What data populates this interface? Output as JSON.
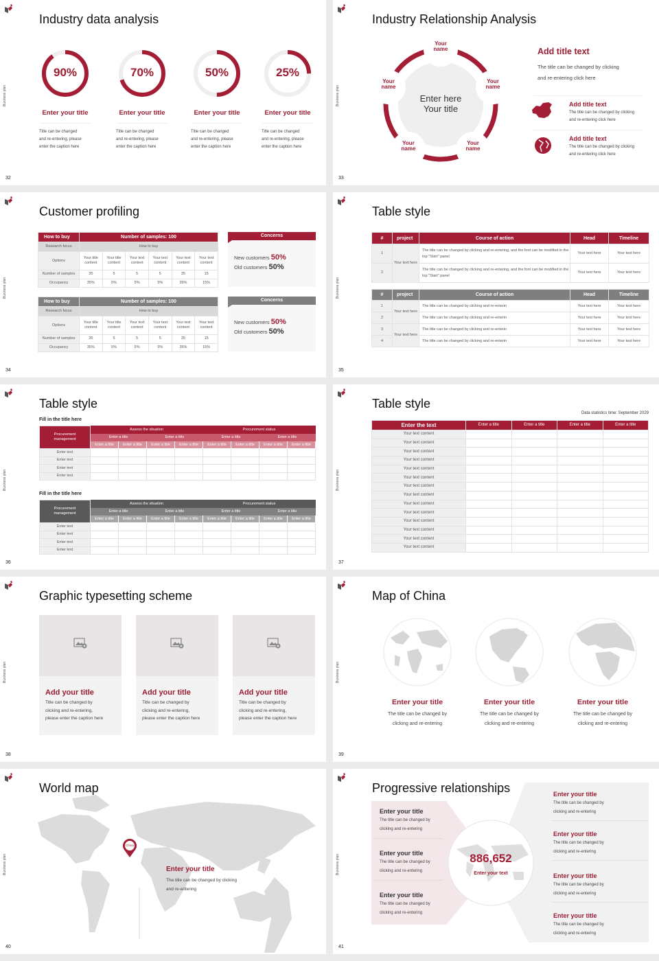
{
  "common": {
    "side_label": "Business plan",
    "accent": "#a31d35",
    "header_gray": "#7f7f7f"
  },
  "s32": {
    "page": "32",
    "title": "Industry data analysis",
    "items": [
      {
        "value": 90,
        "label": "90%",
        "title": "Enter your title",
        "caption": [
          "Title can be changed",
          "and re-entering, please",
          "enter the caption here"
        ]
      },
      {
        "value": 70,
        "label": "70%",
        "title": "Enter your title",
        "caption": [
          "Title can be changed",
          "and re-entering, please",
          "enter the caption here"
        ]
      },
      {
        "value": 50,
        "label": "50%",
        "title": "Enter your title",
        "caption": [
          "Title can be changed",
          "and re-entering, please",
          "enter the caption here"
        ]
      },
      {
        "value": 25,
        "label": "25%",
        "title": "Enter your title",
        "caption": [
          "Title can be changed",
          "and re-entering, please",
          "enter the caption here"
        ]
      }
    ]
  },
  "s33": {
    "page": "33",
    "title": "Industry Relationship Analysis",
    "center": [
      "Enter here",
      "Your title"
    ],
    "names": [
      [
        "Your",
        "name"
      ],
      [
        "Your",
        "name"
      ],
      [
        "Your",
        "name"
      ],
      [
        "Your",
        "name"
      ],
      [
        "Your",
        "name"
      ]
    ],
    "main": {
      "heading": "Add title text",
      "text": [
        "The title can be changed by clicking",
        "and re-entering click here"
      ]
    },
    "items": [
      {
        "icon": "china-map-icon",
        "title": "Add title text",
        "text": [
          "The title can be changed by clicking",
          "and re-entering click here"
        ]
      },
      {
        "icon": "globe-icon",
        "title": "Add title text",
        "text": [
          "The title can be changed by clicking",
          "and re-entering click here"
        ]
      }
    ]
  },
  "s34": {
    "page": "34",
    "title": "Customer profiling",
    "tables": [
      {
        "theme": "red",
        "head": [
          "How to buy",
          "Number of samples: 100"
        ],
        "focus": [
          "Research focus",
          "How to buy"
        ],
        "rows": [
          {
            "label": "Options",
            "cells": [
              "Your title content",
              "Your title content",
              "Your text content",
              "Your text content",
              "Your text content",
              "Your text content"
            ]
          },
          {
            "label": "Number of samples",
            "cells": [
              "35",
              "5",
              "5",
              "5",
              "35",
              "15"
            ]
          },
          {
            "label": "Occupancy",
            "cells": [
              "35%",
              "5%",
              "5%",
              "5%",
              "35%",
              "15%"
            ]
          }
        ],
        "concerns": {
          "title": "Concerns",
          "new_label": "New customers",
          "new_value": "50%",
          "old_label": "Old customers",
          "old_value": "50%"
        }
      },
      {
        "theme": "gray",
        "head": [
          "How to buy",
          "Number of samples: 100"
        ],
        "focus": [
          "Research focus",
          "How to buy"
        ],
        "rows": [
          {
            "label": "Options",
            "cells": [
              "Your title content",
              "Your title content",
              "Your text content",
              "Your text content",
              "Your text content",
              "Your text content"
            ]
          },
          {
            "label": "Number of samples",
            "cells": [
              "35",
              "5",
              "5",
              "5",
              "35",
              "15"
            ]
          },
          {
            "label": "Occupancy",
            "cells": [
              "35%",
              "5%",
              "5%",
              "5%",
              "35%",
              "15%"
            ]
          }
        ],
        "concerns": {
          "title": "Concerns",
          "new_label": "New customers",
          "new_value": "50%",
          "old_label": "Old customers",
          "old_value": "50%"
        }
      }
    ]
  },
  "s35": {
    "page": "35",
    "title": "Table style",
    "tables": [
      {
        "theme": "red",
        "header": [
          "#",
          "project",
          "Course of action",
          "Head",
          "Timeline"
        ],
        "groups": [
          {
            "project": "Your text here",
            "rows": [
              {
                "n": "1",
                "action": "The title can be changed by clicking and re-entering, and the font can be modified in the top \"Start\" panel",
                "head": "Your text here",
                "timeline": "Your text here"
              },
              {
                "n": "2",
                "action": "The title can be changed by clicking and re-entering, and the font can be modified in the top \"Start\" panel",
                "head": "Your text here",
                "timeline": "Your text here"
              }
            ]
          }
        ]
      },
      {
        "theme": "gray",
        "header": [
          "#",
          "project",
          "Course of action",
          "Head",
          "Timeline"
        ],
        "groups": [
          {
            "project": "Your text here",
            "rows": [
              {
                "n": "1",
                "action": "The title can be changed by clicking and re-enterin",
                "head": "Your text here",
                "timeline": "Your text here"
              },
              {
                "n": "2",
                "action": "The title can be changed by clicking and re-enterin",
                "head": "Your text here",
                "timeline": "Your text here"
              }
            ]
          },
          {
            "project": "Your text here",
            "rows": [
              {
                "n": "3",
                "action": "The title can be changed by clicking and re-enterin",
                "head": "Your text here",
                "timeline": "Your text here"
              },
              {
                "n": "4",
                "action": "The title can be changed by clicking and re-enterin",
                "head": "Your text here",
                "timeline": "Your text here"
              }
            ]
          }
        ]
      }
    ]
  },
  "s36": {
    "page": "36",
    "title": "Table style",
    "sections": [
      {
        "heading": "Fill in the title here",
        "theme": "red",
        "corner": "Procurement management",
        "groups": [
          "Assess the situation",
          "Procurement status"
        ],
        "subgroups": [
          "Enter a title",
          "Enter a title",
          "Enter a title",
          "Enter a title"
        ],
        "columns": [
          "Enter a title",
          "Enter a title",
          "Enter a title",
          "Enter a title",
          "Enter a title",
          "Enter a title",
          "Enter a title",
          "Enter a title"
        ],
        "rows": [
          "Enter text",
          "Enter text",
          "Enter text",
          "Enter text"
        ]
      },
      {
        "heading": "Fill in the title here",
        "theme": "gray",
        "corner": "Procurement management",
        "groups": [
          "Assess the situation",
          "Procurement status"
        ],
        "subgroups": [
          "Enter a title",
          "Enter a title",
          "Enter a title",
          "Enter a title"
        ],
        "columns": [
          "Enter a title",
          "Enter a title",
          "Enter a title",
          "Enter a title",
          "Enter a title",
          "Enter a title",
          "Enter a title",
          "Enter a title"
        ],
        "rows": [
          "Enter text",
          "Enter text",
          "Enter text",
          "Enter text"
        ]
      }
    ]
  },
  "s37": {
    "page": "37",
    "title": "Table style",
    "note": "Data statistics time: September 2029",
    "header": [
      "Enter the text",
      "Enter a title",
      "Enter a title",
      "Enter a title",
      "Enter a title"
    ],
    "rows": [
      "Your text content",
      "Your text content",
      "Your text content",
      "Your text content",
      "Your text content",
      "Your text content",
      "Your text content",
      "Your text content",
      "Your text content",
      "Your text content",
      "Your text content",
      "Your text content",
      "Your text content",
      "Your text content"
    ]
  },
  "s38": {
    "page": "38",
    "title": "Graphic typesetting scheme",
    "cards": [
      {
        "icon": "image-placeholder-icon",
        "title": "Add your title",
        "text": [
          "Title can be changed by",
          "clicking and re-entering,",
          "please enter the caption here"
        ]
      },
      {
        "icon": "image-placeholder-icon",
        "title": "Add your title",
        "text": [
          "Title can be changed by",
          "clicking and re-entering,",
          "please enter the caption here"
        ]
      },
      {
        "icon": "image-placeholder-icon",
        "title": "Add your title",
        "text": [
          "Title can be changed by",
          "clicking and re-entering,",
          "please enter the caption here"
        ]
      }
    ]
  },
  "s39": {
    "page": "39",
    "title": "Map of China",
    "items": [
      {
        "title": "Enter your title",
        "text": [
          "The title can be changed by",
          "clicking and re-entering"
        ]
      },
      {
        "title": "Enter your title",
        "text": [
          "The title can be changed by",
          "clicking and re-entering"
        ]
      },
      {
        "title": "Enter your title",
        "text": [
          "The title can be changed by",
          "clicking and re-entering"
        ]
      }
    ]
  },
  "s40": {
    "page": "40",
    "title": "World map",
    "pin": "China",
    "heading": "Enter your title",
    "text": [
      "The title can be changed by clicking",
      "and re-entering"
    ]
  },
  "s41": {
    "page": "41",
    "title": "Progressive relationships",
    "value": "886,652",
    "caption": "Enter your text",
    "left": [
      {
        "title": "Enter your title",
        "text": [
          "The title can be changed by",
          "clicking and re-entering"
        ]
      },
      {
        "title": "Enter your title",
        "text": [
          "The title can be changed by",
          "clicking and re-entering"
        ]
      },
      {
        "title": "Enter your title",
        "text": [
          "The title can be changed by",
          "clicking and re-entering"
        ]
      }
    ],
    "right": [
      {
        "title": "Enter your title",
        "text": [
          "The title can be changed by",
          "clicking and re-entering"
        ]
      },
      {
        "title": "Enter your title",
        "text": [
          "The title can be changed by",
          "clicking and re-entering"
        ]
      },
      {
        "title": "Enter your title",
        "text": [
          "The title can be changed by",
          "clicking and re-entering"
        ]
      },
      {
        "title": "Enter your title",
        "text": [
          "The title can be changed by",
          "clicking and re-entering"
        ]
      }
    ]
  }
}
